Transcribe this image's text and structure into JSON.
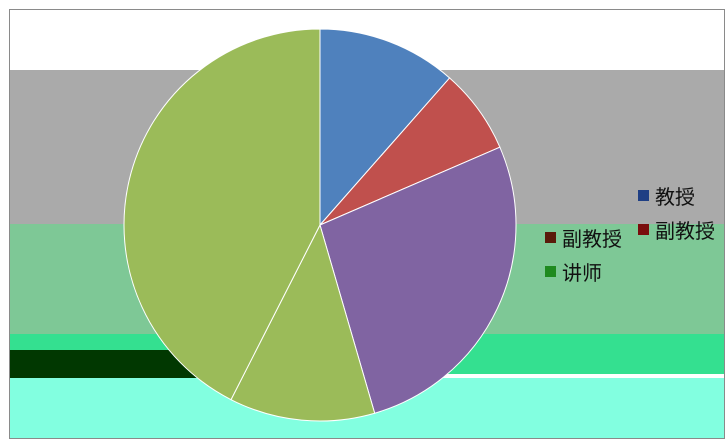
{
  "chart_data": {
    "type": "pie",
    "title": "",
    "slices": [
      {
        "label": "教授",
        "value": 11.5,
        "color": "#4f81bd"
      },
      {
        "label": "副教授",
        "value": 7,
        "color": "#c0504d"
      },
      {
        "label": "",
        "value": 27,
        "color": "#8064a2"
      },
      {
        "label": "讲师",
        "value": 12,
        "color": "#9bbb59"
      },
      {
        "label": "",
        "value": 42.5,
        "color": "#9bbb59"
      }
    ],
    "legend": {
      "placement": "right",
      "entries": [
        "教授",
        "副教授",
        "讲师"
      ]
    }
  },
  "legend_group_a": [
    {
      "label": "教授",
      "color": "#1f3f84"
    },
    {
      "label": "副教授",
      "color": "#7a0d0d"
    }
  ],
  "legend_group_b": [
    {
      "label": "副教授",
      "color": "#5a1a0a"
    },
    {
      "label": "讲师",
      "color": "#1f8a1f"
    }
  ],
  "bands": [
    {
      "color": "#aaaaaa"
    },
    {
      "color": "#7ec896"
    },
    {
      "color": "#34e090"
    },
    {
      "color": "#013801"
    },
    {
      "color": "#82ffe0"
    }
  ]
}
